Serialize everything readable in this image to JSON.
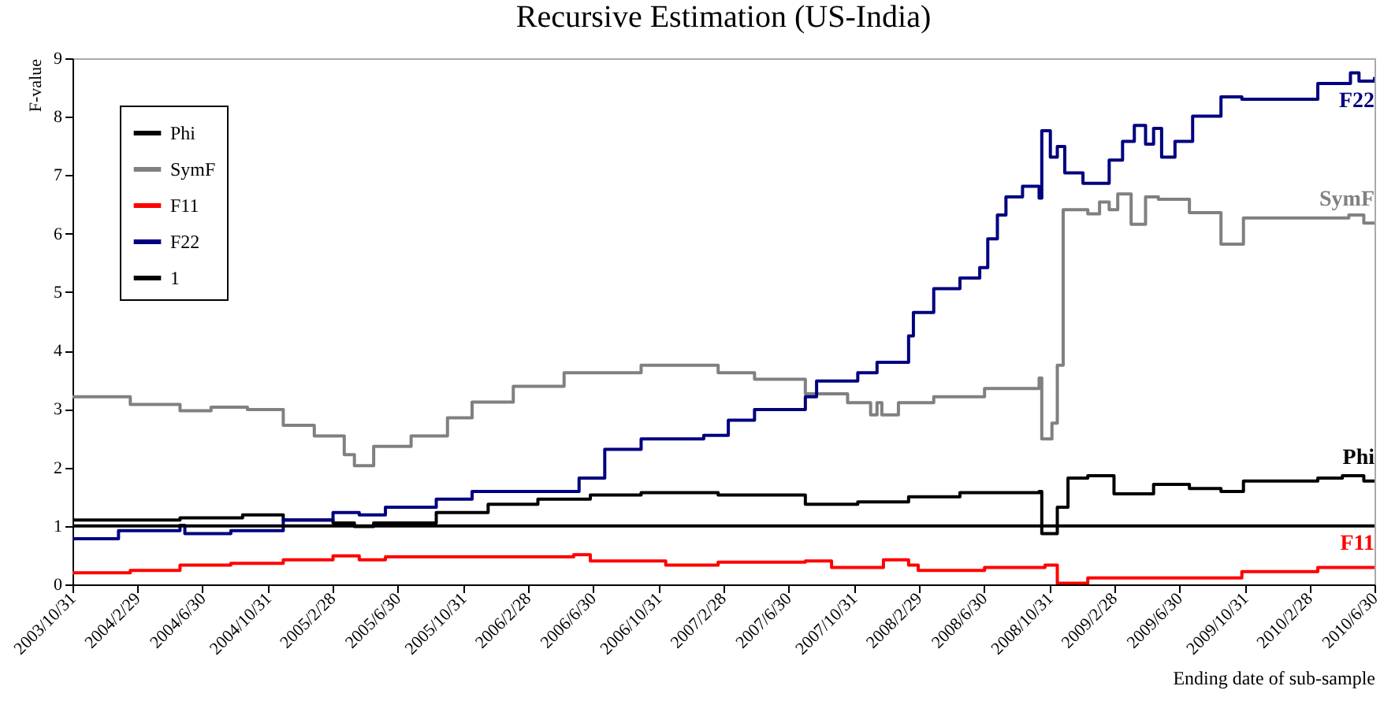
{
  "chart_data": {
    "type": "step",
    "title": "Recursive Estimation (US-India)",
    "xlabel": "Ending date of sub-sample",
    "ylabel": "F-value",
    "xlim": [
      "2003-10-31",
      "2010-06-30"
    ],
    "ylim": [
      0,
      9
    ],
    "yticks": [
      0,
      1,
      2,
      3,
      4,
      5,
      6,
      7,
      8,
      9
    ],
    "xticks": [
      {
        "value": "2003-10-31",
        "label": "2003/10/31"
      },
      {
        "value": "2004-02-29",
        "label": "2004/2/29"
      },
      {
        "value": "2004-06-30",
        "label": "2004/6/30"
      },
      {
        "value": "2004-10-31",
        "label": "2004/10/31"
      },
      {
        "value": "2005-02-28",
        "label": "2005/2/28"
      },
      {
        "value": "2005-06-30",
        "label": "2005/6/30"
      },
      {
        "value": "2005-10-31",
        "label": "2005/10/31"
      },
      {
        "value": "2006-02-28",
        "label": "2006/2/28"
      },
      {
        "value": "2006-06-30",
        "label": "2006/6/30"
      },
      {
        "value": "2006-10-31",
        "label": "2006/10/31"
      },
      {
        "value": "2007-02-28",
        "label": "2007/2/28"
      },
      {
        "value": "2007-06-30",
        "label": "2007/6/30"
      },
      {
        "value": "2007-10-31",
        "label": "2007/10/31"
      },
      {
        "value": "2008-02-29",
        "label": "2008/2/29"
      },
      {
        "value": "2008-06-30",
        "label": "2008/6/30"
      },
      {
        "value": "2008-10-31",
        "label": "2008/10/31"
      },
      {
        "value": "2009-02-28",
        "label": "2009/2/28"
      },
      {
        "value": "2009-06-30",
        "label": "2009/6/30"
      },
      {
        "value": "2009-10-31",
        "label": "2009/10/31"
      },
      {
        "value": "2010-02-28",
        "label": "2010/2/28"
      },
      {
        "value": "2010-06-30",
        "label": "2010/6/30"
      }
    ],
    "legend": "top left",
    "grid": false,
    "series": [
      {
        "name": "Phi",
        "color": "#000000",
        "x": [
          "2003-10-31",
          "2004-05-19",
          "2004-09-13",
          "2004-11-28",
          "2005-03-01",
          "2005-04-10",
          "2005-05-16",
          "2005-09-10",
          "2005-12-16",
          "2006-03-19",
          "2006-06-25",
          "2006-09-28",
          "2007-02-19",
          "2007-08-01",
          "2007-11-07",
          "2008-02-10",
          "2008-05-16",
          "2008-10-11",
          "2008-10-16",
          "2008-11-14",
          "2008-12-04",
          "2009-01-10",
          "2009-02-28",
          "2009-05-13",
          "2009-07-19",
          "2009-09-16",
          "2009-10-28",
          "2010-03-16",
          "2010-05-01",
          "2010-06-10",
          "2010-06-30"
        ],
        "values": [
          1.1,
          1.14,
          1.19,
          1.1,
          1.05,
          0.99,
          1.05,
          1.23,
          1.37,
          1.46,
          1.53,
          1.57,
          1.53,
          1.37,
          1.41,
          1.5,
          1.57,
          1.59,
          0.87,
          1.32,
          1.82,
          1.86,
          1.55,
          1.71,
          1.64,
          1.59,
          1.77,
          1.82,
          1.86,
          1.77,
          1.77
        ]
      },
      {
        "name": "SymF",
        "color": "#808080",
        "x": [
          "2003-10-31",
          "2004-02-16",
          "2004-05-19",
          "2004-07-16",
          "2004-09-22",
          "2004-11-28",
          "2005-01-25",
          "2005-03-22",
          "2005-04-10",
          "2005-04-28",
          "2005-05-16",
          "2005-07-25",
          "2005-10-01",
          "2005-11-16",
          "2006-02-01",
          "2006-05-07",
          "2006-09-28",
          "2007-02-19",
          "2007-04-28",
          "2007-08-01",
          "2007-10-19",
          "2007-12-01",
          "2007-12-13",
          "2007-12-22",
          "2008-01-22",
          "2008-03-28",
          "2008-07-01",
          "2008-10-11",
          "2008-10-16",
          "2008-11-04",
          "2008-11-14",
          "2008-11-25",
          "2009-01-10",
          "2009-02-01",
          "2009-02-19",
          "2009-03-07",
          "2009-04-01",
          "2009-04-28",
          "2009-05-22",
          "2009-07-19",
          "2009-09-16",
          "2009-10-28",
          "2010-01-28",
          "2010-05-13",
          "2010-06-10",
          "2010-06-30"
        ],
        "values": [
          3.21,
          3.08,
          2.97,
          3.03,
          2.99,
          2.72,
          2.54,
          2.22,
          2.03,
          2.03,
          2.36,
          2.54,
          2.85,
          3.12,
          3.39,
          3.62,
          3.75,
          3.62,
          3.51,
          3.26,
          3.11,
          2.9,
          3.11,
          2.9,
          3.11,
          3.21,
          3.35,
          3.53,
          2.49,
          2.76,
          3.75,
          6.41,
          6.34,
          6.54,
          6.41,
          6.68,
          6.16,
          6.63,
          6.59,
          6.36,
          5.82,
          6.27,
          6.27,
          6.32,
          6.18,
          6.18
        ]
      },
      {
        "name": "F11",
        "color": "#ff0000",
        "x": [
          "2003-10-31",
          "2004-02-16",
          "2004-05-19",
          "2004-08-22",
          "2004-11-28",
          "2005-03-01",
          "2005-04-19",
          "2005-06-07",
          "2006-05-25",
          "2006-06-25",
          "2006-11-13",
          "2007-02-19",
          "2007-08-01",
          "2007-09-19",
          "2007-12-25",
          "2008-02-10",
          "2008-02-28",
          "2008-07-01",
          "2008-10-22",
          "2008-11-14",
          "2009-01-10",
          "2009-10-25",
          "2010-03-16",
          "2010-06-30"
        ],
        "values": [
          0.2,
          0.24,
          0.33,
          0.36,
          0.42,
          0.49,
          0.42,
          0.47,
          0.51,
          0.4,
          0.33,
          0.38,
          0.4,
          0.29,
          0.42,
          0.33,
          0.24,
          0.29,
          0.33,
          0.02,
          0.11,
          0.22,
          0.29,
          0.29
        ]
      },
      {
        "name": "F22",
        "color": "#000080",
        "x": [
          "2003-10-31",
          "2004-01-25",
          "2004-05-19",
          "2004-05-28",
          "2004-08-22",
          "2004-11-28",
          "2005-03-01",
          "2005-04-19",
          "2005-06-07",
          "2005-09-10",
          "2005-11-16",
          "2006-05-25",
          "2006-06-04",
          "2006-07-22",
          "2006-09-28",
          "2007-01-23",
          "2007-03-10",
          "2007-04-28",
          "2007-08-01",
          "2007-08-22",
          "2007-11-07",
          "2007-12-13",
          "2008-02-10",
          "2008-02-19",
          "2008-03-28",
          "2008-05-16",
          "2008-06-22",
          "2008-07-07",
          "2008-07-25",
          "2008-08-10",
          "2008-09-10",
          "2008-10-11",
          "2008-10-16",
          "2008-11-01",
          "2008-11-14",
          "2008-11-28",
          "2009-01-01",
          "2009-02-19",
          "2009-03-16",
          "2009-04-07",
          "2009-04-28",
          "2009-05-13",
          "2009-05-28",
          "2009-06-22",
          "2009-07-25",
          "2009-09-16",
          "2009-10-25",
          "2010-03-16",
          "2010-05-16",
          "2010-06-01",
          "2010-06-30"
        ],
        "values": [
          0.78,
          0.92,
          1.01,
          0.87,
          0.92,
          1.1,
          1.23,
          1.19,
          1.32,
          1.46,
          1.59,
          1.59,
          1.82,
          2.31,
          2.49,
          2.55,
          2.81,
          2.99,
          3.21,
          3.48,
          3.62,
          3.8,
          4.25,
          4.65,
          5.06,
          5.24,
          5.42,
          5.91,
          6.32,
          6.63,
          6.81,
          6.61,
          7.76,
          7.31,
          7.49,
          7.04,
          6.86,
          7.26,
          7.58,
          7.85,
          7.53,
          7.8,
          7.31,
          7.58,
          8.01,
          8.34,
          8.3,
          8.57,
          8.75,
          8.61,
          8.68
        ]
      }
    ],
    "ref_lines": [
      {
        "axis": "y",
        "value": 1,
        "label": "1",
        "color": "#000000"
      }
    ]
  }
}
